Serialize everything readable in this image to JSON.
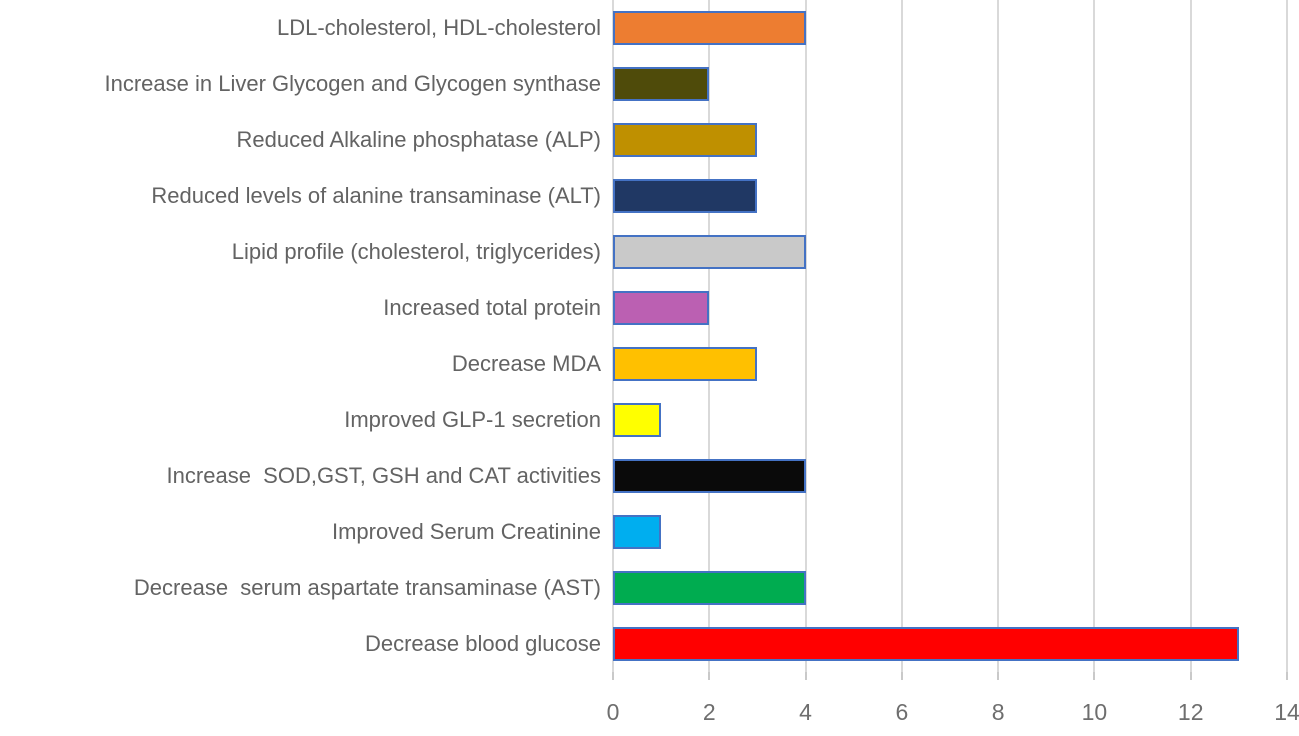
{
  "chart_data": {
    "type": "bar",
    "orientation": "horizontal",
    "title": "",
    "xlabel": "",
    "ylabel": "",
    "categories": [
      "LDL-cholesterol, HDL-cholesterol",
      "Increase in Liver Glycogen and Glycogen synthase",
      "Reduced Alkaline phosphatase (ALP)",
      "Reduced levels of alanine transaminase (ALT)",
      "Lipid profile (cholesterol, triglycerides)",
      "Increased total protein",
      "Decrease MDA",
      "Improved GLP-1 secretion",
      "Increase  SOD,GST, GSH and CAT activities",
      "Improved Serum Creatinine",
      "Decrease  serum aspartate transaminase (AST)",
      "Decrease blood glucose"
    ],
    "values": [
      4,
      2,
      3,
      3,
      4,
      2,
      3,
      1,
      4,
      1,
      4,
      13
    ],
    "bar_colors": [
      "#ED7D31",
      "#4F4B0A",
      "#BF9000",
      "#203864",
      "#C9C9C9",
      "#BB60B2",
      "#FFC000",
      "#FFFF00",
      "#0A0A0A",
      "#00AEEF",
      "#00AC50",
      "#FF0000"
    ],
    "bar_border_color": "#4472C4",
    "xlim": [
      0,
      14
    ],
    "x_ticks": [
      "0",
      "2",
      "4",
      "6",
      "8",
      "10",
      "12",
      "14"
    ],
    "grid": true,
    "gridline_color": "#D9D9D9",
    "axis_label_color": "#6E6E6E",
    "category_label_color": "#636363",
    "legend": false
  }
}
